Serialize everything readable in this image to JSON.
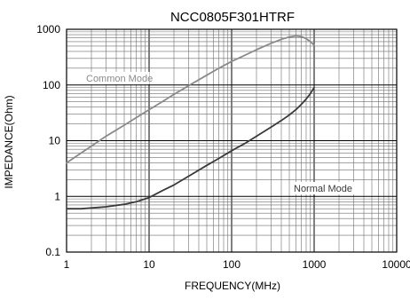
{
  "chart_data": {
    "type": "line",
    "title": "NCC0805F301HTRF",
    "xlabel": "FREQUENCY(MHz)",
    "ylabel": "IMPEDANCE(Ohm)",
    "x_scale": "log",
    "y_scale": "log",
    "xlim": [
      1,
      10000
    ],
    "ylim": [
      0.1,
      1000
    ],
    "x_ticks": [
      "1",
      "10",
      "100",
      "1000",
      "10000"
    ],
    "y_ticks": [
      "0.1",
      "1",
      "10",
      "100",
      "1000"
    ],
    "grid": true,
    "series": [
      {
        "name": "Common Mode",
        "color": "#8a8a8a",
        "x": [
          1,
          1.5,
          2,
          3,
          5,
          7,
          10,
          15,
          20,
          30,
          50,
          70,
          100,
          150,
          200,
          300,
          400,
          500,
          600,
          700,
          800,
          900,
          1000
        ],
        "y": [
          4,
          6,
          8,
          12,
          19,
          26,
          36,
          52,
          68,
          97,
          150,
          200,
          265,
          350,
          430,
          560,
          660,
          730,
          760,
          740,
          680,
          600,
          520
        ]
      },
      {
        "name": "Normal Mode",
        "color": "#3a3a3a",
        "x": [
          1,
          1.5,
          2,
          3,
          5,
          7,
          10,
          15,
          20,
          30,
          50,
          70,
          100,
          150,
          200,
          300,
          400,
          500,
          600,
          700,
          800,
          900,
          1000
        ],
        "y": [
          0.6,
          0.6,
          0.62,
          0.65,
          0.72,
          0.8,
          0.95,
          1.3,
          1.6,
          2.3,
          3.6,
          4.8,
          6.6,
          9.2,
          12,
          17.5,
          23,
          29,
          36,
          45,
          56,
          70,
          90
        ]
      }
    ],
    "annotations": [
      "Common Mode",
      "Normal Mode"
    ]
  }
}
